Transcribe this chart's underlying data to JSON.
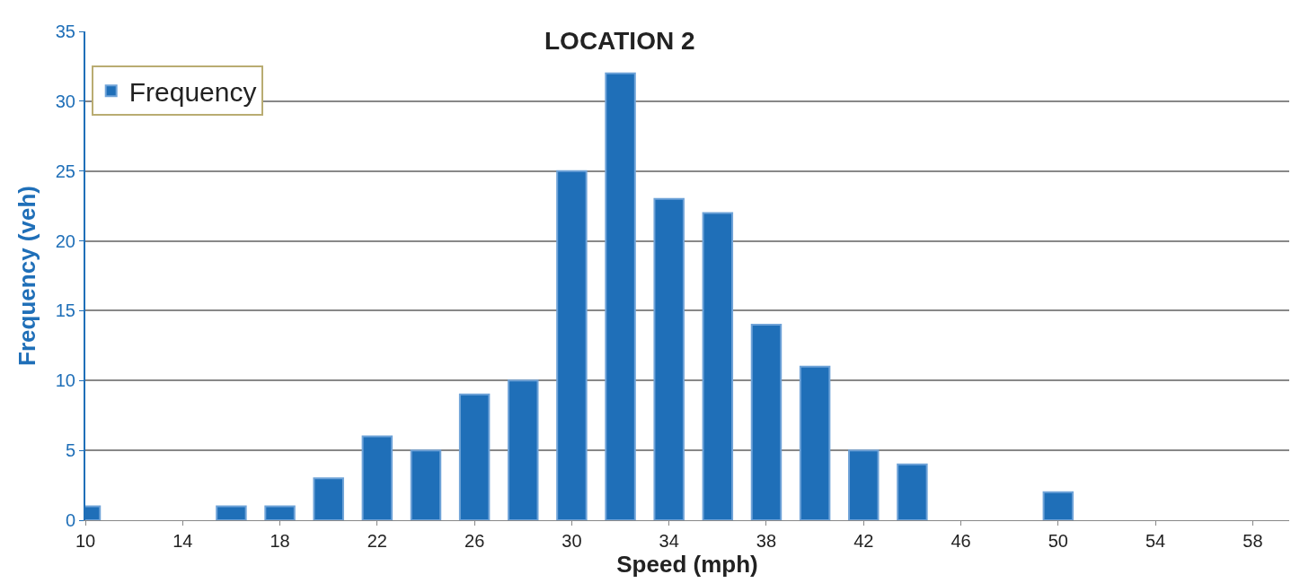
{
  "chart_data": {
    "type": "bar",
    "title": "LOCATION 2",
    "xlabel": "Speed (mph)",
    "ylabel": "Frequency (veh)",
    "x": [
      10,
      12,
      14,
      16,
      18,
      20,
      22,
      24,
      26,
      28,
      30,
      32,
      34,
      36,
      38,
      40,
      42,
      44,
      46,
      48,
      50,
      52,
      54,
      56,
      58
    ],
    "series": [
      {
        "name": "Frequency",
        "color": "#1f6fb8",
        "values": [
          1,
          0,
          0,
          1,
          1,
          3,
          6,
          5,
          9,
          10,
          25,
          32,
          23,
          22,
          14,
          11,
          5,
          4,
          0,
          0,
          2,
          0,
          0,
          0,
          0
        ]
      }
    ],
    "xlim": [
      10,
      59.5
    ],
    "xticks": [
      10,
      14,
      18,
      22,
      26,
      30,
      34,
      38,
      42,
      46,
      50,
      54,
      58
    ],
    "ylim": [
      0,
      35
    ],
    "yticks": [
      0,
      5,
      10,
      15,
      20,
      25,
      30,
      35
    ],
    "grid": "y",
    "legend": "top left"
  }
}
